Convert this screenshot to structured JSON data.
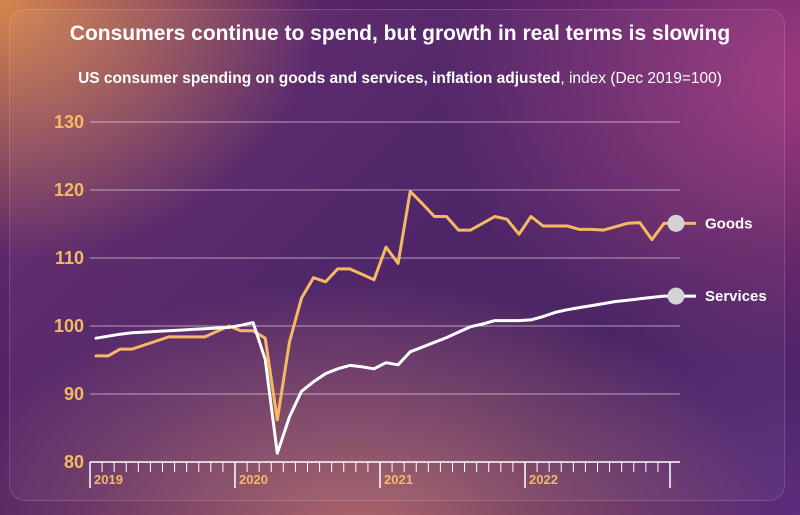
{
  "title": "Consumers continue to spend, but growth in real terms is slowing",
  "subtitle": {
    "bold": "US consumer spending on goods and services, inflation adjusted",
    "normal": ", index (Dec 2019=100)"
  },
  "colors": {
    "goods": "#f5b964",
    "services": "#ffffff",
    "marker": "#d3d3d3",
    "axis_text": "#f5b964"
  },
  "chart_data": {
    "type": "line",
    "title": "Consumers continue to spend, but growth in real terms is slowing",
    "subtitle": "US consumer spending on goods and services, inflation adjusted, index (Dec 2019=100)",
    "xlabel": "",
    "ylabel": "",
    "ylim": [
      80,
      130
    ],
    "yticks": [
      80,
      90,
      100,
      110,
      120,
      130
    ],
    "x_period": "monthly, Jan 2019 - Dec 2022",
    "xtick_labels": [
      "2019",
      "2020",
      "2021",
      "2022"
    ],
    "grid": true,
    "series": [
      {
        "name": "Goods",
        "values": [
          95.6,
          95.6,
          96.6,
          96.6,
          97.2,
          97.8,
          98.4,
          98.4,
          98.4,
          98.4,
          99.2,
          100.0,
          99.3,
          99.3,
          98.2,
          86.2,
          97.6,
          104.1,
          107.1,
          106.5,
          108.4,
          108.4,
          107.6,
          106.8,
          111.6,
          109.2,
          119.8,
          118.0,
          116.1,
          116.1,
          114.1,
          114.1,
          115.1,
          116.1,
          115.7,
          113.5,
          116.1,
          114.7,
          114.7,
          114.7,
          114.2,
          114.2,
          114.1,
          114.6,
          115.1,
          115.2,
          112.7,
          115.1
        ]
      },
      {
        "name": "Services",
        "values": [
          98.2,
          98.5,
          98.8,
          99.0,
          99.1,
          99.2,
          99.3,
          99.4,
          99.5,
          99.6,
          99.7,
          99.8,
          100.1,
          100.5,
          95.1,
          81.3,
          86.6,
          90.4,
          91.8,
          93.0,
          93.7,
          94.2,
          94.0,
          93.7,
          94.6,
          94.3,
          96.2,
          96.9,
          97.6,
          98.3,
          99.1,
          99.9,
          100.3,
          100.8,
          100.8,
          100.8,
          100.9,
          101.4,
          102.0,
          102.4,
          102.7,
          103.0,
          103.3,
          103.6,
          103.8,
          104.0,
          104.2,
          104.4
        ]
      }
    ]
  }
}
